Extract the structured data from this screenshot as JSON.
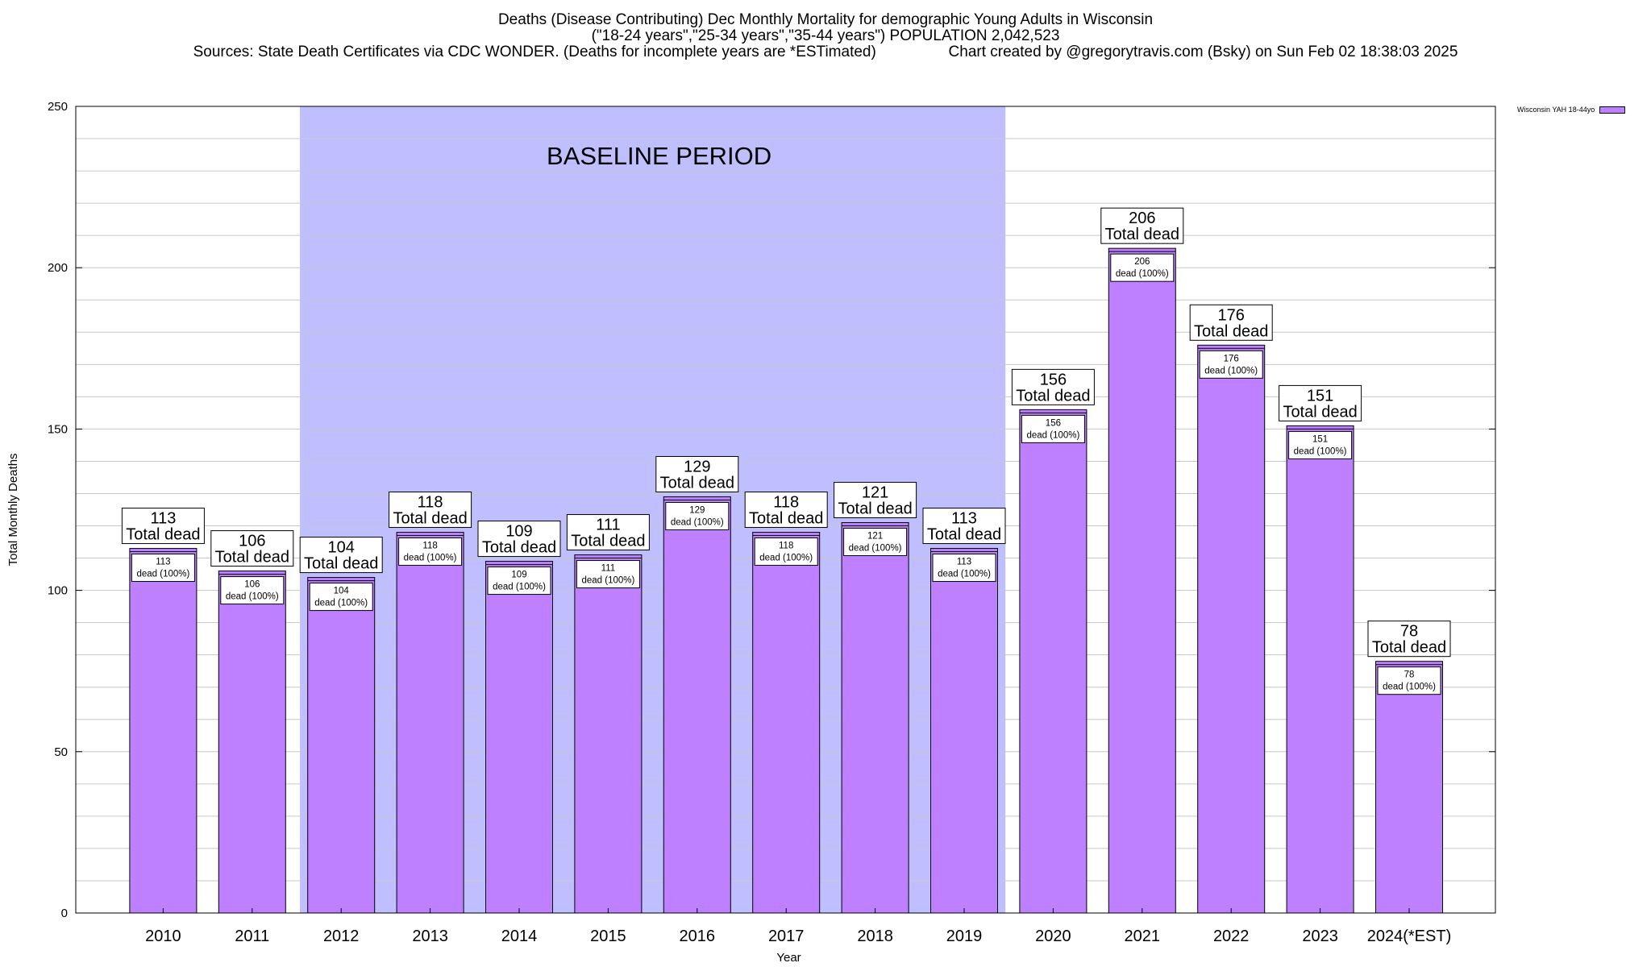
{
  "header": {
    "title_line1": "Deaths (Disease Contributing) Dec Monthly Mortality for demographic Young Adults in Wisconsin",
    "title_line2": "(\"18-24 years\",\"25-34 years\",\"35-44 years\") POPULATION 2,042,523",
    "title_line3": "Sources: State Death Certificates via CDC WONDER. (Deaths for incomplete years are *ESTimated)                 Chart created by @gregorytravis.com (Bsky) on Sun Feb 02 18:38:03 2025"
  },
  "legend": {
    "label": "Wisconsin YAH 18-44yo",
    "color": "#bf80ff"
  },
  "colors": {
    "bar": "#bf80ff",
    "baseline_band": "#bfbfff",
    "grid": "#c8c8c8"
  },
  "chart_data": {
    "type": "bar",
    "title": "Deaths (Disease Contributing) Dec Monthly Mortality for demographic Young Adults in Wisconsin",
    "xlabel": "Year",
    "ylabel": "Total Monthly Deaths",
    "ylim": [
      0,
      250
    ],
    "yticks": [
      0,
      50,
      100,
      150,
      200,
      250
    ],
    "grid": true,
    "legend_position": "top-right",
    "categories": [
      "2010",
      "2011",
      "2012",
      "2013",
      "2014",
      "2015",
      "2016",
      "2017",
      "2018",
      "2019",
      "2020",
      "2021",
      "2022",
      "2023",
      "2024(*EST)"
    ],
    "series": [
      {
        "name": "Wisconsin YAH 18-44yo",
        "values": [
          113,
          106,
          104,
          118,
          109,
          111,
          129,
          118,
          121,
          113,
          156,
          206,
          176,
          151,
          78
        ]
      }
    ],
    "top_label_suffix": "Total dead",
    "inner_label_suffix": "dead (100%)",
    "shaded_region": {
      "label": "BASELINE PERIOD",
      "from": "2012",
      "to": "2019"
    }
  }
}
